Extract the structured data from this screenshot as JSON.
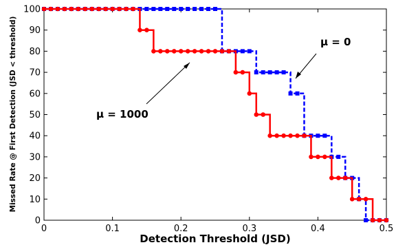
{
  "chart_data": {
    "type": "line",
    "xlabel": "Detection Threshold (JSD)",
    "ylabel": "Missed Rate @ First Detection (JSD < threshold)",
    "xlim": [
      0,
      0.5
    ],
    "ylim": [
      0,
      100
    ],
    "xticks": [
      "0",
      "0.1",
      "0.2",
      "0.3",
      "0.4",
      "0.5"
    ],
    "yticks": [
      "0",
      "10",
      "20",
      "30",
      "40",
      "50",
      "60",
      "70",
      "80",
      "90",
      "100"
    ],
    "grid": false,
    "x": [
      0,
      0.01,
      0.02,
      0.03,
      0.04,
      0.05,
      0.06,
      0.07,
      0.08,
      0.09,
      0.1,
      0.11,
      0.12,
      0.13,
      0.14,
      0.15,
      0.16,
      0.17,
      0.18,
      0.19,
      0.2,
      0.21,
      0.22,
      0.23,
      0.24,
      0.25,
      0.26,
      0.27,
      0.28,
      0.29,
      0.3,
      0.31,
      0.32,
      0.33,
      0.34,
      0.35,
      0.36,
      0.37,
      0.38,
      0.39,
      0.4,
      0.41,
      0.42,
      0.43,
      0.44,
      0.45,
      0.46,
      0.47,
      0.48,
      0.49,
      0.5
    ],
    "series": [
      {
        "name": "μ = 0",
        "color": "#0000ff",
        "line_style": "dashed",
        "marker": "square",
        "values": [
          100,
          100,
          100,
          100,
          100,
          100,
          100,
          100,
          100,
          100,
          100,
          100,
          100,
          100,
          100,
          100,
          100,
          100,
          100,
          100,
          100,
          100,
          100,
          100,
          100,
          100,
          80,
          80,
          80,
          80,
          80,
          70,
          70,
          70,
          70,
          70,
          60,
          60,
          40,
          40,
          40,
          40,
          30,
          30,
          20,
          20,
          10,
          0,
          0,
          0,
          0
        ]
      },
      {
        "name": "μ = 1000",
        "color": "#ff0000",
        "line_style": "solid",
        "marker": "circle",
        "values": [
          100,
          100,
          100,
          100,
          100,
          100,
          100,
          100,
          100,
          100,
          100,
          100,
          100,
          100,
          90,
          90,
          80,
          80,
          80,
          80,
          80,
          80,
          80,
          80,
          80,
          80,
          80,
          80,
          70,
          70,
          60,
          50,
          50,
          40,
          40,
          40,
          40,
          40,
          40,
          30,
          30,
          30,
          20,
          20,
          20,
          10,
          10,
          10,
          0,
          0,
          0
        ]
      }
    ],
    "annotations": [
      {
        "text": "μ = 0",
        "series": "μ = 0"
      },
      {
        "text": "μ = 1000",
        "series": "μ = 1000"
      }
    ]
  }
}
